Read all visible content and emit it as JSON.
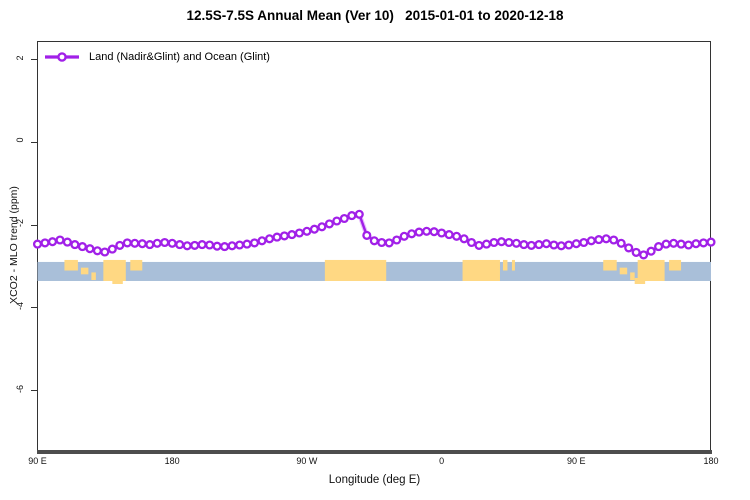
{
  "title": "12.5S-7.5S Annual Mean (Ver 10)   2015-01-01 to 2020-12-18",
  "legend": {
    "label": "Land (Nadir&Glint) and Ocean (Glint)"
  },
  "x_axis": {
    "label": "Longitude (deg E)"
  },
  "y_axis": {
    "label": "XCO2 - MLO trend (ppm)"
  },
  "colors": {
    "series": "#a120e8",
    "series_halo": "#cf7ef5",
    "marker_fill": "#ffffff",
    "ocean": "#a9bfd9",
    "land": "#ffd883",
    "frame": "#333333",
    "axis_bar": "#4d4d4d",
    "text": "#111111"
  },
  "chart_data": {
    "type": "line",
    "title": "12.5S-7.5S Annual Mean (Ver 10)   2015-01-01 to 2020-12-18",
    "xlabel": "Longitude (deg E)",
    "ylabel": "XCO2 - MLO trend (ppm)",
    "xlim": [
      90,
      540
    ],
    "ylim": [
      -7.43,
      2.45
    ],
    "grid": false,
    "legend_position": "top-left-inside",
    "xticks": [
      {
        "pos": 90,
        "label": "90 E"
      },
      {
        "pos": 180,
        "label": "180"
      },
      {
        "pos": 270,
        "label": "90 W"
      },
      {
        "pos": 360,
        "label": "0"
      },
      {
        "pos": 450,
        "label": "90 E"
      },
      {
        "pos": 540,
        "label": "180"
      }
    ],
    "yticks": [
      2,
      0,
      -2,
      -4,
      -6
    ],
    "series": [
      {
        "name": "Land (Nadir&Glint) and Ocean (Glint)",
        "marker": "open-circle",
        "x": [
          90,
          95,
          100,
          105,
          110,
          115,
          120,
          125,
          130,
          135,
          140,
          145,
          150,
          155,
          160,
          165,
          170,
          175,
          180,
          185,
          190,
          195,
          200,
          205,
          210,
          215,
          220,
          225,
          230,
          235,
          240,
          245,
          250,
          255,
          260,
          265,
          270,
          275,
          280,
          285,
          290,
          295,
          300,
          305,
          310,
          315,
          320,
          325,
          330,
          335,
          340,
          345,
          350,
          355,
          360,
          365,
          370,
          375,
          380,
          385,
          390,
          395,
          400,
          405,
          410,
          415,
          420,
          425,
          430,
          435,
          440,
          445,
          450,
          455,
          460,
          465,
          470,
          475,
          480,
          485,
          490,
          495,
          500,
          505,
          510,
          515,
          520,
          525,
          530,
          535,
          540
        ],
        "y": [
          -2.46,
          -2.43,
          -2.4,
          -2.36,
          -2.41,
          -2.47,
          -2.52,
          -2.57,
          -2.62,
          -2.65,
          -2.58,
          -2.49,
          -2.43,
          -2.44,
          -2.45,
          -2.47,
          -2.44,
          -2.42,
          -2.44,
          -2.47,
          -2.5,
          -2.49,
          -2.47,
          -2.48,
          -2.51,
          -2.52,
          -2.5,
          -2.48,
          -2.46,
          -2.43,
          -2.38,
          -2.33,
          -2.29,
          -2.26,
          -2.23,
          -2.19,
          -2.15,
          -2.1,
          -2.04,
          -1.97,
          -1.9,
          -1.84,
          -1.77,
          -1.74,
          -2.25,
          -2.38,
          -2.42,
          -2.43,
          -2.36,
          -2.27,
          -2.21,
          -2.17,
          -2.15,
          -2.16,
          -2.19,
          -2.23,
          -2.27,
          -2.33,
          -2.42,
          -2.49,
          -2.46,
          -2.42,
          -2.4,
          -2.42,
          -2.44,
          -2.47,
          -2.49,
          -2.47,
          -2.45,
          -2.48,
          -2.5,
          -2.48,
          -2.45,
          -2.42,
          -2.38,
          -2.35,
          -2.33,
          -2.36,
          -2.44,
          -2.55,
          -2.66,
          -2.72,
          -2.63,
          -2.52,
          -2.46,
          -2.44,
          -2.46,
          -2.48,
          -2.45,
          -2.43,
          -2.41
        ]
      }
    ],
    "map_band": {
      "description": "land/ocean strip for latitude band 12.5S-7.5S",
      "y_top": -2.89,
      "y_bottom": -3.35,
      "land_segments": [
        {
          "from": 108,
          "to": 117,
          "part": "top"
        },
        {
          "from": 119,
          "to": 124,
          "part": "mid"
        },
        {
          "from": 126,
          "to": 129,
          "part": "low"
        },
        {
          "from": 134,
          "to": 149,
          "part": "full"
        },
        {
          "from": 152,
          "to": 160,
          "part": "top"
        },
        {
          "from": 140,
          "to": 147,
          "part": "bottom"
        },
        {
          "from": 282,
          "to": 323,
          "part": "full"
        },
        {
          "from": 374,
          "to": 399,
          "part": "full"
        },
        {
          "from": 401,
          "to": 404,
          "part": "top"
        },
        {
          "from": 407,
          "to": 409,
          "part": "top"
        },
        {
          "from": 468,
          "to": 477,
          "part": "top"
        },
        {
          "from": 479,
          "to": 484,
          "part": "mid"
        },
        {
          "from": 486,
          "to": 489,
          "part": "low"
        },
        {
          "from": 491,
          "to": 509,
          "part": "full"
        },
        {
          "from": 512,
          "to": 520,
          "part": "top"
        },
        {
          "from": 489,
          "to": 496,
          "part": "bottom"
        }
      ]
    }
  }
}
